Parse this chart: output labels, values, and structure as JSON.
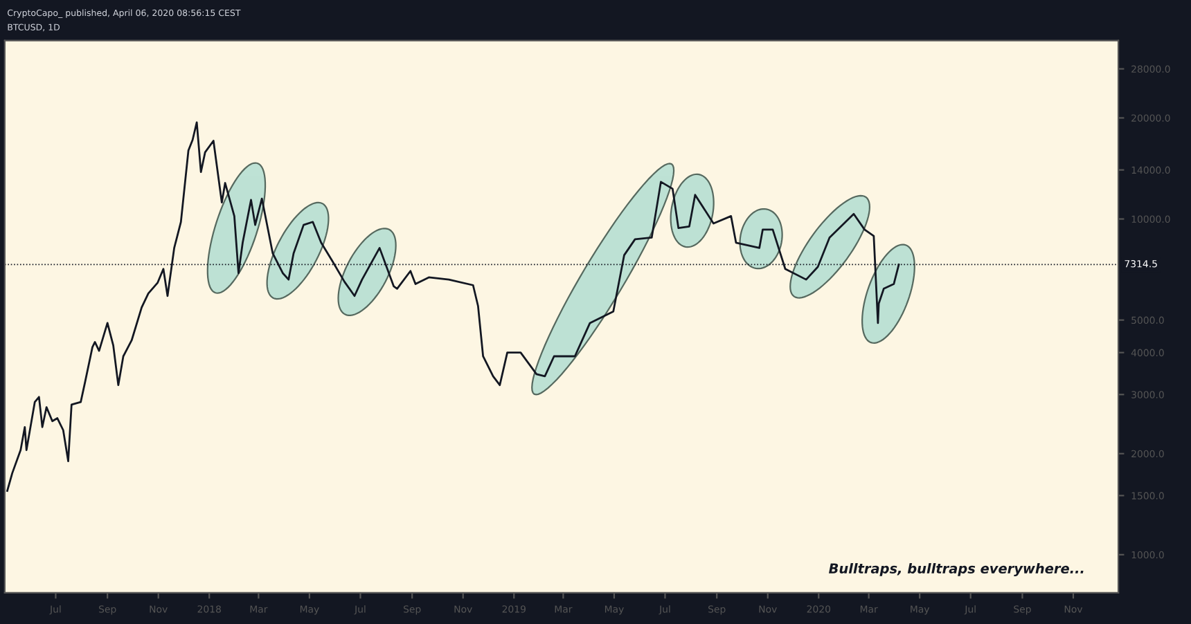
{
  "chart_data": {
    "type": "line",
    "title": "CryptoCapo_ published, April 06, 2020 08:56:15 CEST",
    "subtitle": "BTCUSD, 1D",
    "x": [
      "2017-05-04",
      "2017-05-10",
      "2017-05-20",
      "2017-05-25",
      "2017-05-27",
      "2017-06-06",
      "2017-06-11",
      "2017-06-15",
      "2017-06-20",
      "2017-06-27",
      "2017-07-03",
      "2017-07-10",
      "2017-07-16",
      "2017-07-20",
      "2017-07-31",
      "2017-08-05",
      "2017-08-14",
      "2017-08-17",
      "2017-08-22",
      "2017-09-01",
      "2017-09-08",
      "2017-09-14",
      "2017-09-20",
      "2017-09-30",
      "2017-10-12",
      "2017-10-20",
      "2017-10-31",
      "2017-11-07",
      "2017-11-12",
      "2017-11-20",
      "2017-11-28",
      "2017-12-07",
      "2017-12-12",
      "2017-12-17",
      "2017-12-22",
      "2017-12-27",
      "2018-01-06",
      "2018-01-16",
      "2018-01-20",
      "2018-01-31",
      "2018-02-05",
      "2018-02-10",
      "2018-02-20",
      "2018-02-25",
      "2018-03-05",
      "2018-03-18",
      "2018-03-30",
      "2018-04-06",
      "2018-04-12",
      "2018-04-24",
      "2018-05-05",
      "2018-05-15",
      "2018-05-29",
      "2018-06-12",
      "2018-06-24",
      "2018-07-03",
      "2018-07-24",
      "2018-08-10",
      "2018-08-14",
      "2018-08-30",
      "2018-09-05",
      "2018-09-21",
      "2018-10-15",
      "2018-11-13",
      "2018-11-19",
      "2018-11-25",
      "2018-12-07",
      "2018-12-15",
      "2018-12-24",
      "2019-01-09",
      "2019-01-28",
      "2019-02-07",
      "2019-02-18",
      "2019-03-15",
      "2019-04-02",
      "2019-04-30",
      "2019-05-13",
      "2019-05-26",
      "2019-06-15",
      "2019-06-26",
      "2019-07-10",
      "2019-07-17",
      "2019-07-30",
      "2019-08-06",
      "2019-08-28",
      "2019-09-18",
      "2019-09-24",
      "2019-10-22",
      "2019-10-26",
      "2019-11-07",
      "2019-11-22",
      "2019-12-17",
      "2019-12-31",
      "2020-01-14",
      "2020-02-12",
      "2020-02-25",
      "2020-03-07",
      "2020-03-12",
      "2020-03-13",
      "2020-03-19",
      "2020-03-31",
      "2020-04-06"
    ],
    "series": [
      {
        "color": "#131722",
        "values": [
          1550,
          1750,
          2050,
          2400,
          2050,
          2850,
          2950,
          2400,
          2750,
          2500,
          2550,
          2350,
          1900,
          2800,
          2850,
          3250,
          4150,
          4300,
          4050,
          4900,
          4200,
          3200,
          3900,
          4350,
          5450,
          6000,
          6450,
          7100,
          5900,
          8200,
          9800,
          16000,
          17200,
          19400,
          13800,
          15800,
          17100,
          11200,
          12800,
          10200,
          6900,
          8500,
          11400,
          9600,
          11500,
          7900,
          6900,
          6600,
          7900,
          9600,
          9800,
          8500,
          7450,
          6500,
          5900,
          6600,
          8200,
          6300,
          6200,
          7000,
          6400,
          6700,
          6600,
          6350,
          5500,
          3900,
          3400,
          3200,
          4000,
          4000,
          3450,
          3400,
          3900,
          3900,
          4900,
          5300,
          7800,
          8700,
          8800,
          12900,
          12300,
          9400,
          9500,
          11800,
          9700,
          10200,
          8500,
          8200,
          9300,
          9300,
          7100,
          6600,
          7200,
          8800,
          10350,
          9300,
          8900,
          4900,
          5600,
          6200,
          6400,
          7314
        ]
      }
    ],
    "xlim": [
      "2017-05-01",
      "2020-12-25"
    ],
    "xticks": [
      {
        "value": "2017-07-01",
        "label": "Jul"
      },
      {
        "value": "2017-09-01",
        "label": "Sep"
      },
      {
        "value": "2017-11-01",
        "label": "Nov"
      },
      {
        "value": "2018-01-01",
        "label": "2018"
      },
      {
        "value": "2018-03-01",
        "label": "Mar"
      },
      {
        "value": "2018-05-01",
        "label": "May"
      },
      {
        "value": "2018-07-01",
        "label": "Jul"
      },
      {
        "value": "2018-09-01",
        "label": "Sep"
      },
      {
        "value": "2018-11-01",
        "label": "Nov"
      },
      {
        "value": "2019-01-01",
        "label": "2019"
      },
      {
        "value": "2019-03-01",
        "label": "Mar"
      },
      {
        "value": "2019-05-01",
        "label": "May"
      },
      {
        "value": "2019-07-01",
        "label": "Jul"
      },
      {
        "value": "2019-09-01",
        "label": "Sep"
      },
      {
        "value": "2019-11-01",
        "label": "Nov"
      },
      {
        "value": "2020-01-01",
        "label": "2020"
      },
      {
        "value": "2020-03-01",
        "label": "Mar"
      },
      {
        "value": "2020-05-01",
        "label": "May"
      },
      {
        "value": "2020-07-01",
        "label": "Jul"
      },
      {
        "value": "2020-09-01",
        "label": "Sep"
      },
      {
        "value": "2020-11-01",
        "label": "Nov"
      }
    ],
    "log": true,
    "ylim": [
      770,
      34000
    ],
    "yticks": [
      {
        "value": 1000,
        "label": "1000.0"
      },
      {
        "value": 1500,
        "label": "1500.0"
      },
      {
        "value": 2000,
        "label": "2000.0"
      },
      {
        "value": 3000,
        "label": "3000.0"
      },
      {
        "value": 4000,
        "label": "4000.0"
      },
      {
        "value": 5000,
        "label": "5000.0"
      },
      {
        "value": 10000,
        "label": "10000.0"
      },
      {
        "value": 14000,
        "label": "14000.0"
      },
      {
        "value": 20000,
        "label": "20000.0"
      },
      {
        "value": 28000,
        "label": "28000.0"
      }
    ],
    "ref_lines": [
      {
        "axis": "y",
        "value": 7314.5,
        "label": "7314.5",
        "color": "#131722",
        "line_style": "dotted"
      }
    ],
    "annotations": [
      "Bulltraps, bulltraps everywhere..."
    ],
    "grid": false
  }
}
